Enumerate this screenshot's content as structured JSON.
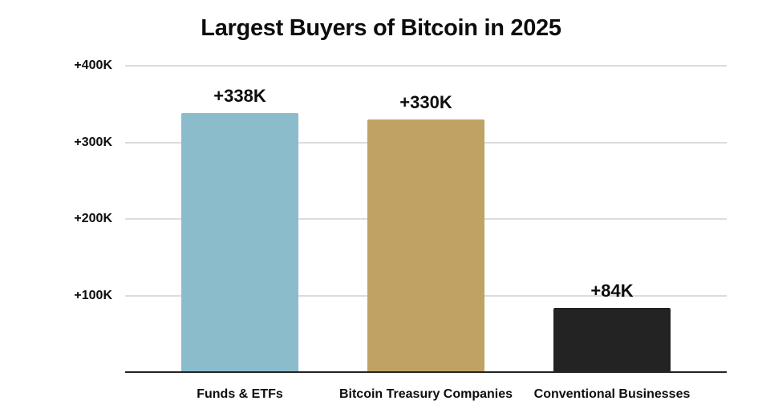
{
  "chart_data": {
    "type": "bar",
    "title": "Largest Buyers of Bitcoin in 2025",
    "categories": [
      "Funds & ETFs",
      "Bitcoin Treasury Companies",
      "Conventional Businesses"
    ],
    "values": [
      338000,
      330000,
      84000
    ],
    "value_labels": [
      "+338K",
      "+330K",
      "+84K"
    ],
    "bar_colors": [
      "#8ABCCC",
      "#C0A264",
      "#232323"
    ],
    "xlabel": "",
    "ylabel": "",
    "ylim": [
      0,
      400000
    ],
    "yticks": [
      {
        "value": 100000,
        "label": "+100K"
      },
      {
        "value": 200000,
        "label": "+200K"
      },
      {
        "value": 300000,
        "label": "+300K"
      },
      {
        "value": 400000,
        "label": "+400K"
      }
    ],
    "grid": true,
    "legend": false
  },
  "colors": {
    "background": "#ffffff",
    "gridline": "#dcdcdc",
    "axis_line": "#242424",
    "text": "#0d0d0d"
  }
}
